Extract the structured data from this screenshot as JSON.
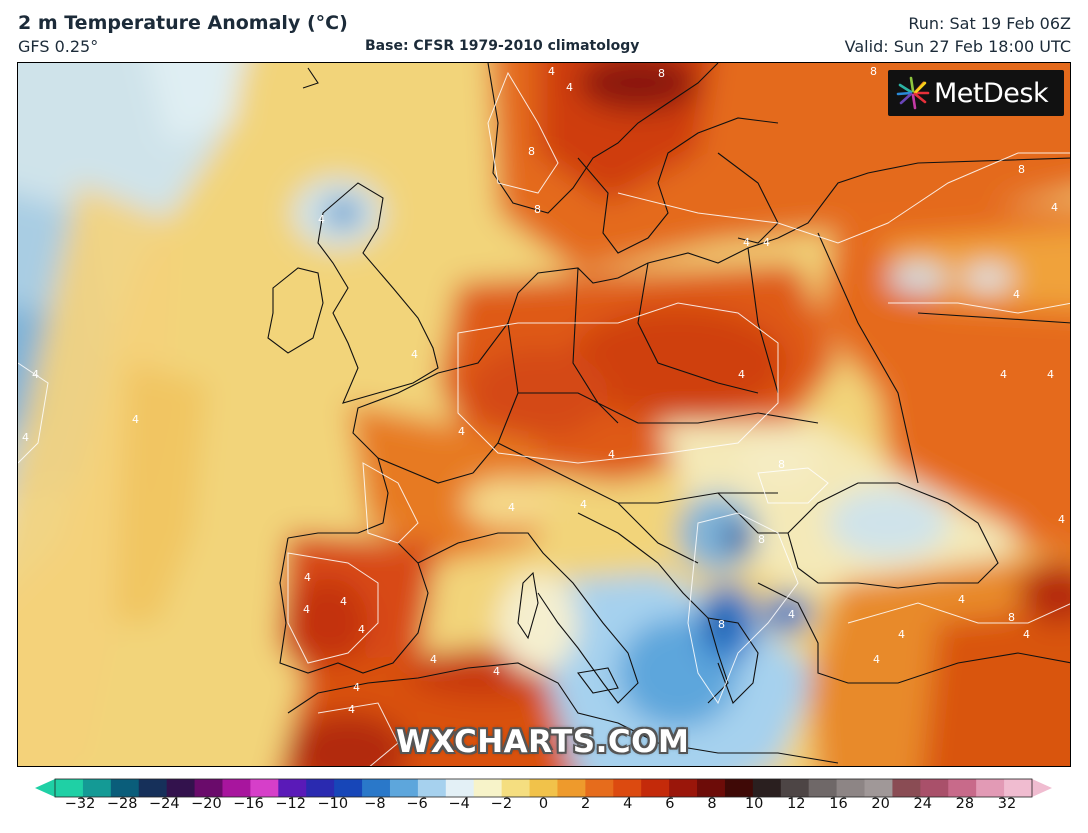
{
  "header": {
    "title": "2 m Temperature Anomaly (°C)",
    "model": "GFS 0.25°",
    "base": "Base: CFSR 1979-2010 climatology",
    "run": "Run: Sat 19 Feb 06Z",
    "valid": "Valid: Sun 27 Feb 18:00 UTC"
  },
  "branding": {
    "logo_text": "MetDesk",
    "watermark": "WXCHARTS.COM"
  },
  "colorbar": {
    "ticks": [
      "−32",
      "−28",
      "−24",
      "−20",
      "−16",
      "−12",
      "−10",
      "−8",
      "−6",
      "−4",
      "−2",
      "0",
      "2",
      "4",
      "6",
      "8",
      "10",
      "12",
      "16",
      "20",
      "24",
      "28",
      "32"
    ],
    "colors": [
      "#1fd0a5",
      "#149a95",
      "#0a5d7a",
      "#16305a",
      "#33124d",
      "#6a0b6b",
      "#a8159e",
      "#d63fc9",
      "#5a1ab8",
      "#2a2ab0",
      "#1746b8",
      "#2a78c9",
      "#5da6dc",
      "#a6d1ee",
      "#e3f0f6",
      "#f7f3c9",
      "#f5de80",
      "#f1c24a",
      "#ee9a2c",
      "#e66c1c",
      "#dc4a10",
      "#c42a0a",
      "#9a160a",
      "#6d0c08",
      "#3f0906",
      "#2a1f1f",
      "#4d4545",
      "#6f6868",
      "#8d8585",
      "#a09898",
      "#8a4c54",
      "#a9506a",
      "#c86a8a",
      "#e29ab5",
      "#f0bcd0"
    ]
  },
  "map": {
    "contour_labels": [
      "4",
      "4",
      "8",
      "8",
      "8",
      "4",
      "4",
      "4",
      "4",
      "4",
      "4",
      "4",
      "4",
      "4",
      "4",
      "4",
      "4",
      "4",
      "4",
      "4",
      "4",
      "8",
      "8",
      "8",
      "8",
      "8",
      "4",
      "4",
      "4",
      "4",
      "4",
      "4",
      "4",
      "4",
      "4",
      "4",
      "8",
      "4",
      "4",
      "4",
      "4"
    ]
  }
}
